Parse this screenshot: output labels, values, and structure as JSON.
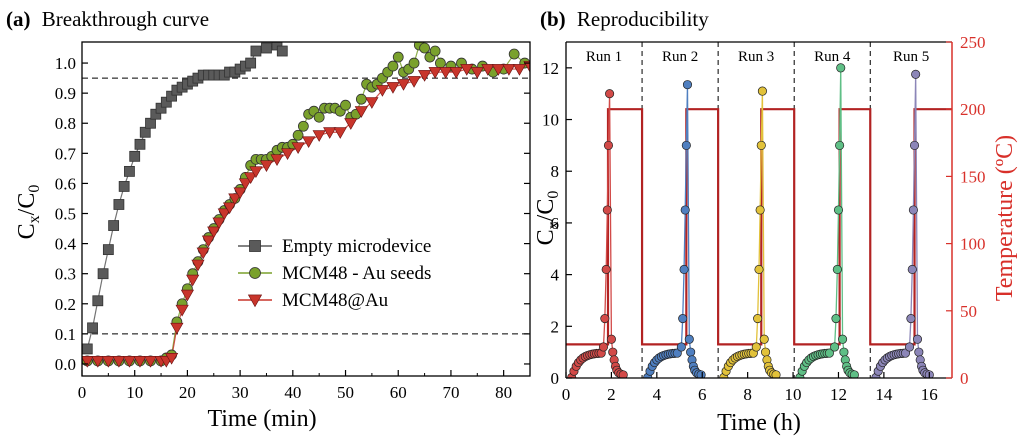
{
  "chart_data": [
    {
      "type": "scatter",
      "panel_tag": "(a)",
      "title": "Breakthrough curve",
      "xlabel": "Time (min)",
      "ylabel": "Cx/C0",
      "xlim": [
        0,
        85
      ],
      "ylim": [
        -0.04,
        1.07
      ],
      "xticks": [
        0,
        10,
        20,
        30,
        40,
        50,
        60,
        70,
        80
      ],
      "yticks": [
        "0.0",
        "0.1",
        "0.2",
        "0.3",
        "0.4",
        "0.5",
        "0.6",
        "0.7",
        "0.8",
        "0.9",
        "1.0"
      ],
      "reference_lines": [
        0.1,
        0.95
      ],
      "legend_position": "center-right",
      "series": [
        {
          "name": "Empty microdevice",
          "color": "#5a5a5a",
          "marker": "square",
          "x": [
            1,
            2,
            3,
            4,
            5,
            6,
            7,
            8,
            9,
            10,
            11,
            12,
            13,
            14,
            15,
            16,
            17,
            18,
            19,
            20,
            21,
            22,
            23,
            24,
            25,
            26,
            27,
            28,
            29,
            30,
            31,
            32,
            33,
            35,
            37,
            38
          ],
          "y": [
            0.05,
            0.12,
            0.21,
            0.3,
            0.38,
            0.46,
            0.53,
            0.59,
            0.64,
            0.69,
            0.73,
            0.77,
            0.8,
            0.83,
            0.85,
            0.87,
            0.89,
            0.91,
            0.92,
            0.93,
            0.94,
            0.95,
            0.96,
            0.96,
            0.96,
            0.96,
            0.96,
            0.97,
            0.97,
            0.98,
            0.99,
            1.0,
            1.04,
            1.05,
            1.06,
            1.04
          ]
        },
        {
          "name": "MCM48 - Au seeds",
          "color": "#7aa12c",
          "marker": "circle",
          "x": [
            1,
            3,
            5,
            7,
            9,
            11,
            13,
            15,
            16,
            17,
            18,
            19,
            20,
            21,
            22,
            23,
            24,
            25,
            26,
            27,
            28,
            29,
            30,
            31,
            32,
            33,
            34,
            35,
            36,
            37,
            38,
            39,
            40,
            41,
            42,
            43,
            44,
            45,
            46,
            47,
            48,
            49,
            50,
            51,
            52,
            53,
            54,
            55,
            56,
            57,
            58,
            59,
            60,
            61,
            62,
            63,
            64,
            65,
            66,
            67,
            68,
            70,
            72,
            74,
            76,
            78,
            80,
            82,
            84
          ],
          "y": [
            0.01,
            0.01,
            0.01,
            0.01,
            0.01,
            0.01,
            0.01,
            0.01,
            0.02,
            0.03,
            0.14,
            0.2,
            0.25,
            0.3,
            0.34,
            0.38,
            0.42,
            0.45,
            0.48,
            0.51,
            0.53,
            0.55,
            0.58,
            0.62,
            0.66,
            0.68,
            0.68,
            0.68,
            0.69,
            0.71,
            0.72,
            0.72,
            0.73,
            0.76,
            0.79,
            0.83,
            0.84,
            0.82,
            0.85,
            0.85,
            0.85,
            0.84,
            0.86,
            0.82,
            0.83,
            0.88,
            0.93,
            0.92,
            0.93,
            0.95,
            0.97,
            0.99,
            1.02,
            0.97,
            0.98,
            1.0,
            1.06,
            1.05,
            1.02,
            1.04,
            1.0,
            0.99,
            1.0,
            0.98,
            0.99,
            0.97,
            0.98,
            1.03,
            1.0
          ]
        },
        {
          "name": "MCM48@Au",
          "color": "#c8352b",
          "marker": "triangle-down",
          "x": [
            1,
            3,
            5,
            7,
            9,
            11,
            13,
            15,
            16,
            17,
            18,
            19,
            20,
            21,
            22,
            23,
            24,
            25,
            26,
            27,
            28,
            29,
            30,
            31,
            32,
            33,
            35,
            37,
            39,
            41,
            43,
            45,
            47,
            49,
            51,
            53,
            55,
            57,
            59,
            61,
            63,
            65,
            67,
            69,
            71,
            73,
            75,
            77,
            79,
            81,
            83,
            85
          ],
          "y": [
            0.01,
            0.01,
            0.01,
            0.01,
            0.01,
            0.01,
            0.01,
            0.01,
            0.01,
            0.02,
            0.12,
            0.18,
            0.23,
            0.28,
            0.33,
            0.37,
            0.41,
            0.44,
            0.47,
            0.5,
            0.52,
            0.55,
            0.57,
            0.6,
            0.62,
            0.64,
            0.66,
            0.68,
            0.7,
            0.72,
            0.74,
            0.76,
            0.77,
            0.77,
            0.8,
            0.84,
            0.87,
            0.91,
            0.92,
            0.93,
            0.94,
            0.96,
            0.97,
            0.97,
            0.97,
            0.98,
            0.97,
            0.98,
            0.98,
            0.98,
            0.98,
            0.99
          ]
        }
      ]
    },
    {
      "type": "line",
      "panel_tag": "(b)",
      "title": "Reproducibility",
      "xlabel": "Time (h)",
      "ylabel": "Cx/C0",
      "y2label": "Temperature (ºC)",
      "xlim": [
        0,
        17
      ],
      "ylim": [
        0,
        13
      ],
      "y2lim": [
        0,
        250
      ],
      "xticks": [
        0,
        2,
        4,
        6,
        8,
        10,
        12,
        14,
        16
      ],
      "yticks": [
        0,
        2,
        4,
        6,
        8,
        10,
        12
      ],
      "y2ticks": [
        0,
        50,
        100,
        150,
        200,
        250
      ],
      "run_dividers": [
        3.35,
        6.7,
        10.05,
        13.4
      ],
      "run_labels": [
        "Run 1",
        "Run 2",
        "Run 3",
        "Run 4",
        "Run 5"
      ],
      "runs": [
        {
          "name": "Run 1",
          "color": "#d24a48",
          "start": 0.25,
          "peak_time": 1.92,
          "peak_value": 11.0
        },
        {
          "name": "Run 2",
          "color": "#4f7fc0",
          "start": 3.6,
          "peak_time": 5.35,
          "peak_value": 11.35
        },
        {
          "name": "Run 3",
          "color": "#e2c23a",
          "start": 6.95,
          "peak_time": 8.65,
          "peak_value": 11.1
        },
        {
          "name": "Run 4",
          "color": "#5fbf86",
          "start": 10.3,
          "peak_time": 12.1,
          "peak_value": 12.0
        },
        {
          "name": "Run 5",
          "color": "#8c86b8",
          "start": 13.65,
          "peak_time": 15.4,
          "peak_value": 11.75
        }
      ],
      "temperature": {
        "color": "#b22222",
        "x": [
          0,
          1.85,
          1.85,
          3.35,
          3.35,
          5.3,
          5.3,
          6.7,
          6.7,
          8.6,
          8.6,
          10.05,
          10.05,
          12.05,
          12.05,
          13.4,
          13.4,
          15.35,
          15.35,
          17
        ],
        "y": [
          25,
          25,
          200,
          200,
          25,
          25,
          200,
          200,
          25,
          25,
          200,
          200,
          25,
          25,
          200,
          200,
          25,
          25,
          200,
          200
        ]
      }
    }
  ]
}
